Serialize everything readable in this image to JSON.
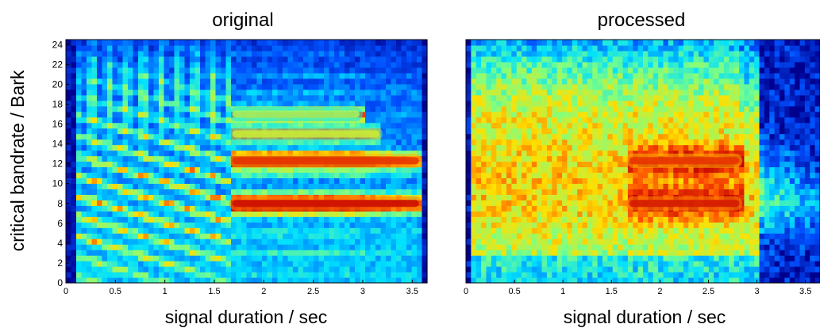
{
  "chart_data": [
    {
      "type": "heatmap",
      "title": "original",
      "xlabel": "signal duration / sec",
      "ylabel": "critical bandrate / Bark",
      "xlim": [
        0,
        3.65
      ],
      "ylim": [
        0,
        24.5
      ],
      "xticks": [
        "0",
        "0.5",
        "1",
        "1.5",
        "2",
        "2.5",
        "3",
        "3.5"
      ],
      "xtick_values": [
        0,
        0.5,
        1,
        1.5,
        2,
        2.5,
        3,
        3.5
      ],
      "yticks": [
        "0",
        "2",
        "4",
        "6",
        "8",
        "10",
        "12",
        "14",
        "16",
        "18",
        "20",
        "22",
        "24"
      ],
      "ytick_values": [
        0,
        2,
        4,
        6,
        8,
        10,
        12,
        14,
        16,
        18,
        20,
        22,
        24
      ],
      "colormap": [
        "#00008f",
        "#0050ff",
        "#00e0ff",
        "#80ff80",
        "#ffe000",
        "#ff5000",
        "#c00000"
      ],
      "features": [
        {
          "kind": "sustained-band",
          "t_start": 1.65,
          "t_end": 3.6,
          "bark": 8,
          "level": 0.97
        },
        {
          "kind": "sustained-band",
          "t_start": 1.65,
          "t_end": 3.6,
          "bark": 12.3,
          "level": 0.9
        },
        {
          "kind": "sustained-band",
          "t_start": 1.65,
          "t_end": 3.2,
          "bark": 15,
          "level": 0.6
        },
        {
          "kind": "sustained-band",
          "t_start": 1.65,
          "t_end": 3.0,
          "bark": 17,
          "level": 0.55
        }
      ]
    },
    {
      "type": "heatmap",
      "title": "processed",
      "xlabel": "signal duration / sec",
      "ylabel": "",
      "xlim": [
        0,
        3.65
      ],
      "ylim": [
        0,
        24.5
      ],
      "xticks": [
        "0",
        "0.5",
        "1",
        "1.5",
        "2",
        "2.5",
        "3",
        "3.5"
      ],
      "xtick_values": [
        0,
        0.5,
        1,
        1.5,
        2,
        2.5,
        3,
        3.5
      ],
      "yticks": [],
      "ytick_values": [],
      "colormap": [
        "#00008f",
        "#0050ff",
        "#00e0ff",
        "#80ff80",
        "#ffe000",
        "#ff5000",
        "#c00000"
      ],
      "features": [
        {
          "kind": "broadband-region",
          "t_start": 0.1,
          "t_end": 3.0,
          "bark_low": 3,
          "bark_high": 18,
          "level": 0.75
        },
        {
          "kind": "sustained-band",
          "t_start": 1.65,
          "t_end": 2.85,
          "bark": 8,
          "level": 0.95
        },
        {
          "kind": "sustained-band",
          "t_start": 1.65,
          "t_end": 2.85,
          "bark": 12.3,
          "level": 0.9
        }
      ]
    }
  ]
}
